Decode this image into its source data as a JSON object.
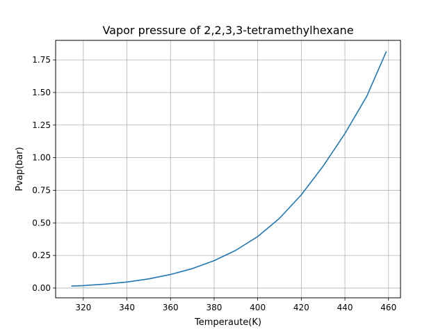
{
  "chart_data": {
    "type": "line",
    "title": "Vapor pressure of 2,2,3,3-tetramethylhexane",
    "xlabel": "Temperaute(K)",
    "ylabel": "Pvap(bar)",
    "xlim": [
      307.3,
      465.5
    ],
    "ylim": [
      -0.075,
      1.9
    ],
    "x_ticks": [
      320,
      340,
      360,
      380,
      400,
      420,
      440,
      460
    ],
    "y_ticks": [
      0.0,
      0.25,
      0.5,
      0.75,
      1.0,
      1.25,
      1.5,
      1.75
    ],
    "x_tick_labels": [
      "320",
      "340",
      "360",
      "380",
      "400",
      "420",
      "440",
      "460"
    ],
    "y_tick_labels": [
      "0.00",
      "0.25",
      "0.50",
      "0.75",
      "1.00",
      "1.25",
      "1.50",
      "1.75"
    ],
    "grid": true,
    "line_color": "#1f77b4",
    "series": [
      {
        "x": [
          314.5,
          320,
          330,
          340,
          350,
          360,
          370,
          380,
          390,
          400,
          410,
          420,
          430,
          440,
          450,
          459
        ],
        "values": [
          0.015,
          0.019,
          0.03,
          0.046,
          0.07,
          0.104,
          0.149,
          0.21,
          0.29,
          0.395,
          0.535,
          0.715,
          0.935,
          1.185,
          1.47,
          1.815
        ]
      }
    ]
  }
}
